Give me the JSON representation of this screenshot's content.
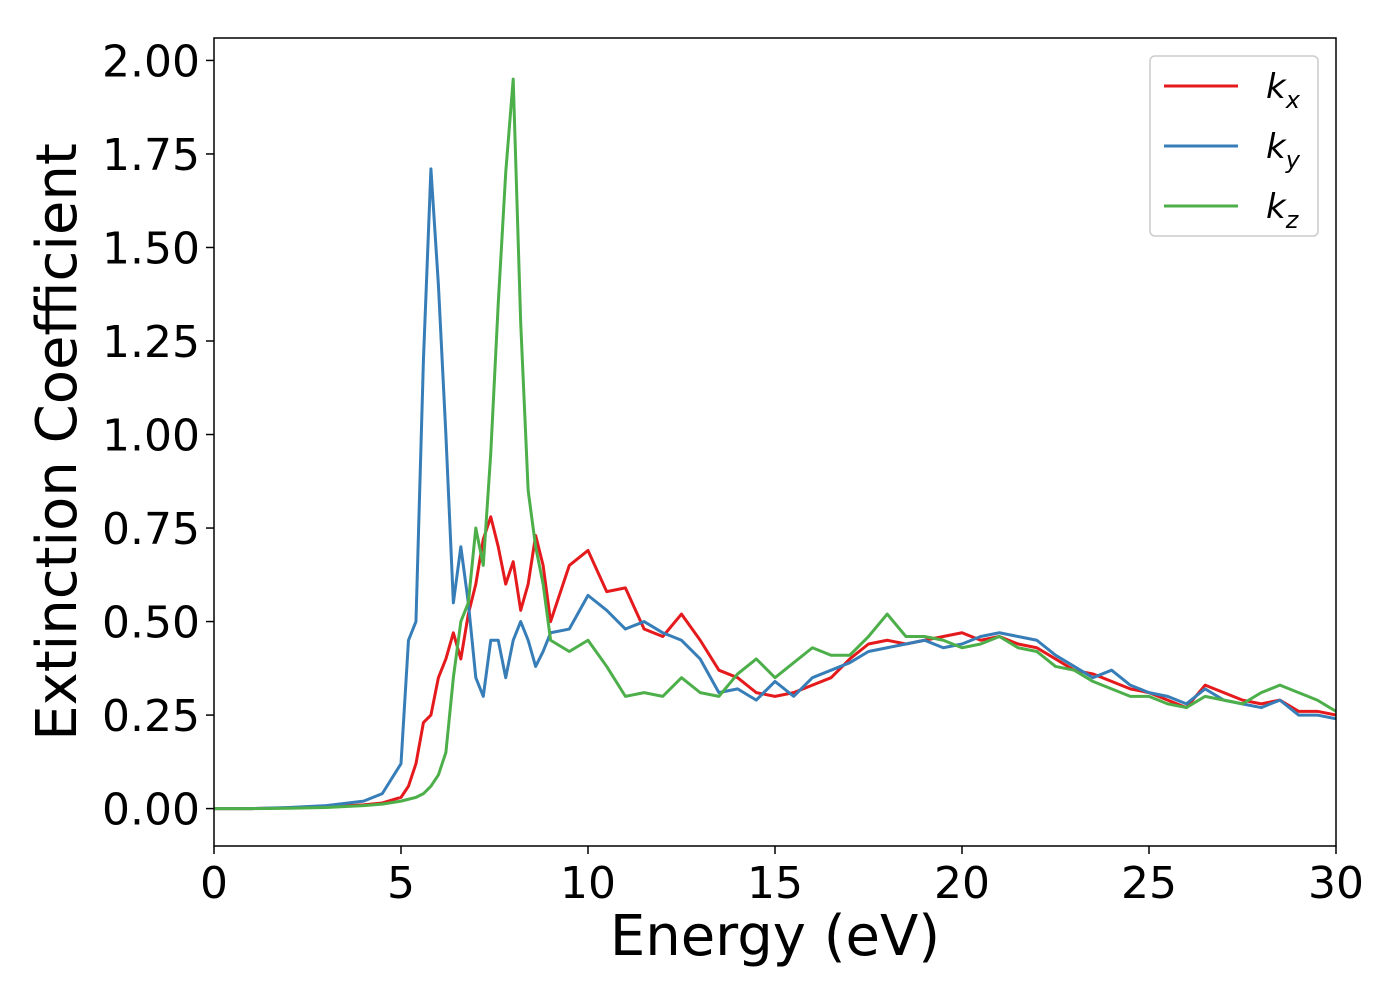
{
  "chart_data": {
    "type": "line",
    "xlabel": "Energy (eV)",
    "ylabel": "Extinction Coefficient",
    "x": [
      0,
      1,
      2,
      3,
      4,
      4.5,
      5,
      5.2,
      5.4,
      5.6,
      5.8,
      6,
      6.2,
      6.4,
      6.6,
      6.8,
      7,
      7.2,
      7.4,
      7.6,
      7.8,
      8,
      8.2,
      8.4,
      8.6,
      8.8,
      9,
      9.5,
      10,
      10.5,
      11,
      11.5,
      12,
      12.5,
      13,
      13.5,
      14,
      14.5,
      15,
      15.5,
      16,
      16.5,
      17,
      17.5,
      18,
      18.5,
      19,
      19.5,
      20,
      20.5,
      21,
      21.5,
      22,
      22.5,
      23,
      23.5,
      24,
      24.5,
      25,
      25.5,
      26,
      26.5,
      27,
      27.5,
      28,
      28.5,
      29,
      29.5,
      30
    ],
    "series": [
      {
        "name": "kx",
        "color": "#e41a1c",
        "values": [
          0,
          0,
          0.002,
          0.005,
          0.01,
          0.015,
          0.03,
          0.06,
          0.12,
          0.23,
          0.25,
          0.35,
          0.4,
          0.47,
          0.4,
          0.52,
          0.6,
          0.72,
          0.78,
          0.7,
          0.6,
          0.66,
          0.53,
          0.6,
          0.73,
          0.65,
          0.5,
          0.65,
          0.69,
          0.58,
          0.59,
          0.48,
          0.46,
          0.52,
          0.45,
          0.37,
          0.35,
          0.31,
          0.3,
          0.31,
          0.33,
          0.35,
          0.4,
          0.44,
          0.45,
          0.44,
          0.45,
          0.46,
          0.47,
          0.45,
          0.46,
          0.44,
          0.43,
          0.4,
          0.37,
          0.36,
          0.34,
          0.32,
          0.31,
          0.29,
          0.27,
          0.33,
          0.31,
          0.29,
          0.28,
          0.29,
          0.26,
          0.26,
          0.25
        ]
      },
      {
        "name": "ky",
        "color": "#377eb8",
        "values": [
          0,
          0,
          0.003,
          0.008,
          0.02,
          0.04,
          0.12,
          0.45,
          0.5,
          1.2,
          1.71,
          1.4,
          1.0,
          0.55,
          0.7,
          0.55,
          0.35,
          0.3,
          0.45,
          0.45,
          0.35,
          0.45,
          0.5,
          0.45,
          0.38,
          0.42,
          0.47,
          0.48,
          0.57,
          0.53,
          0.48,
          0.5,
          0.47,
          0.45,
          0.4,
          0.31,
          0.32,
          0.29,
          0.34,
          0.3,
          0.35,
          0.37,
          0.39,
          0.42,
          0.43,
          0.44,
          0.45,
          0.43,
          0.44,
          0.46,
          0.47,
          0.46,
          0.45,
          0.41,
          0.38,
          0.35,
          0.37,
          0.33,
          0.31,
          0.3,
          0.28,
          0.32,
          0.29,
          0.28,
          0.27,
          0.29,
          0.25,
          0.25,
          0.24
        ]
      },
      {
        "name": "kz",
        "color": "#4daf4a",
        "values": [
          0,
          0,
          0.001,
          0.003,
          0.008,
          0.012,
          0.02,
          0.025,
          0.03,
          0.04,
          0.06,
          0.09,
          0.15,
          0.35,
          0.5,
          0.55,
          0.75,
          0.65,
          0.95,
          1.35,
          1.7,
          1.95,
          1.3,
          0.85,
          0.7,
          0.6,
          0.45,
          0.42,
          0.45,
          0.38,
          0.3,
          0.31,
          0.3,
          0.35,
          0.31,
          0.3,
          0.36,
          0.4,
          0.35,
          0.39,
          0.43,
          0.41,
          0.41,
          0.46,
          0.52,
          0.46,
          0.46,
          0.45,
          0.43,
          0.44,
          0.46,
          0.43,
          0.42,
          0.38,
          0.37,
          0.34,
          0.32,
          0.3,
          0.3,
          0.28,
          0.27,
          0.3,
          0.29,
          0.28,
          0.31,
          0.33,
          0.31,
          0.29,
          0.26
        ]
      }
    ],
    "xlim": [
      0,
      30
    ],
    "xticks": [
      0,
      5,
      10,
      15,
      20,
      25,
      30
    ],
    "ylim": [
      -0.1,
      2.06
    ],
    "yticks": [
      {
        "value": 0,
        "label": "0.00"
      },
      {
        "value": 0.25,
        "label": "0.25"
      },
      {
        "value": 0.5,
        "label": "0.50"
      },
      {
        "value": 0.75,
        "label": "0.75"
      },
      {
        "value": 1,
        "label": "1.00"
      },
      {
        "value": 1.25,
        "label": "1.25"
      },
      {
        "value": 1.5,
        "label": "1.50"
      },
      {
        "value": 1.75,
        "label": "1.75"
      },
      {
        "value": 2,
        "label": "2.00"
      }
    ],
    "legend": "upper right",
    "grid": false
  }
}
